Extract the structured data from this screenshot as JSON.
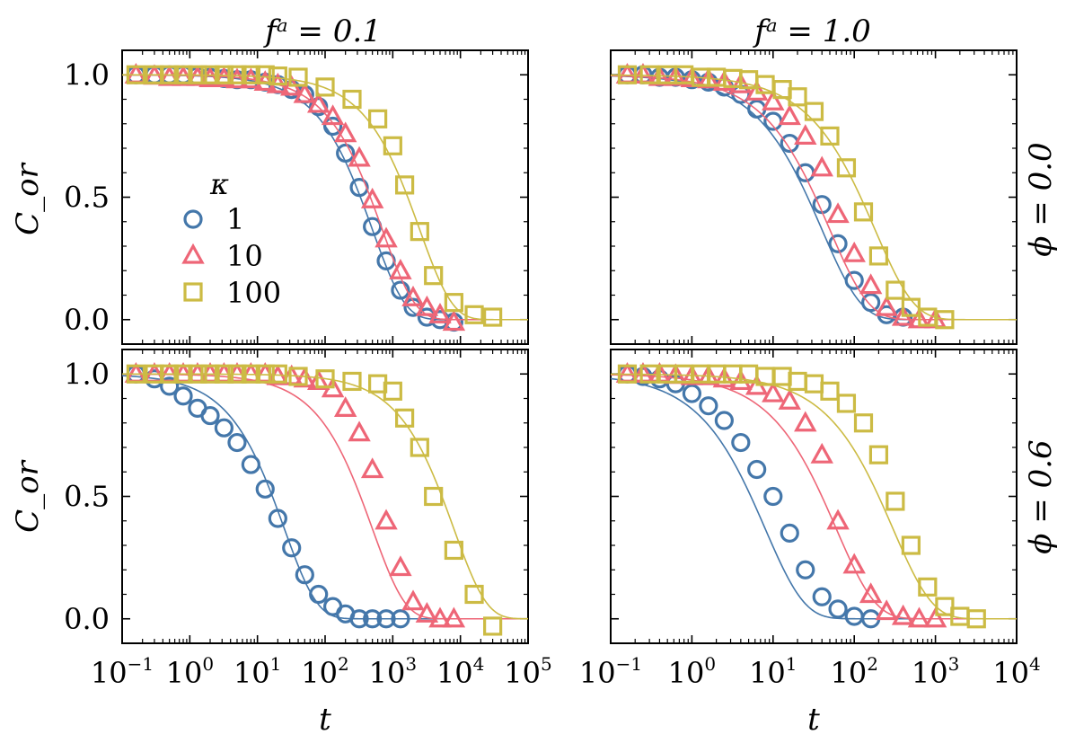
{
  "chart_data": {
    "type": "scatter",
    "ylabel": "C_or",
    "xlabel": "t",
    "ylim": [
      -0.1,
      1.1
    ],
    "yticks": [
      0.0,
      0.5,
      1.0
    ],
    "ytick_labels": [
      "0.0",
      "0.5",
      "1.0"
    ],
    "legend": {
      "title": "κ",
      "entries": [
        "1",
        "10",
        "100"
      ],
      "location": "center-left",
      "panel": "top-left"
    },
    "colors": {
      "k1": "#4477aa",
      "k10": "#ee6677",
      "k100": "#ccbb44"
    },
    "col_titles": [
      "fᵃ = 0.1",
      "fᵃ = 1.0"
    ],
    "row_titles": [
      "ϕ = 0.0",
      "ϕ = 0.6"
    ],
    "columns": [
      {
        "xlog_range": [
          -1,
          5
        ],
        "xtick_exps": [
          -1,
          0,
          1,
          2,
          3,
          4,
          5
        ]
      },
      {
        "xlog_range": [
          -1,
          4
        ],
        "xtick_exps": [
          -1,
          0,
          1,
          2,
          3,
          4
        ]
      }
    ],
    "panels": [
      {
        "col": 0,
        "row": 0,
        "series": [
          {
            "kappa": "1",
            "marker": "circle",
            "tau": 500,
            "beta": 0.9,
            "x": [
              0.16,
              0.3,
              0.5,
              0.8,
              1.3,
              2,
              3.2,
              5,
              8,
              13,
              20,
              32,
              50,
              80,
              130,
              200,
              320,
              500,
              800,
              1300,
              2000,
              3200,
              5000,
              8000
            ],
            "y": [
              1.0,
              1.0,
              1.0,
              1.0,
              0.995,
              0.99,
              0.985,
              0.98,
              0.98,
              0.97,
              0.96,
              0.94,
              0.92,
              0.87,
              0.79,
              0.68,
              0.54,
              0.38,
              0.24,
              0.12,
              0.05,
              0.01,
              0.0,
              -0.01
            ]
          },
          {
            "kappa": "10",
            "marker": "triangle",
            "tau": 700,
            "beta": 0.9,
            "x": [
              0.16,
              0.3,
              0.5,
              0.8,
              1.3,
              2,
              3.2,
              5,
              8,
              13,
              20,
              32,
              50,
              80,
              130,
              200,
              320,
              500,
              800,
              1300,
              2000,
              3200,
              5000,
              8000
            ],
            "y": [
              1.0,
              0.995,
              0.99,
              0.99,
              0.99,
              0.985,
              0.985,
              0.98,
              0.98,
              0.97,
              0.96,
              0.95,
              0.92,
              0.88,
              0.83,
              0.76,
              0.66,
              0.49,
              0.33,
              0.2,
              0.09,
              0.05,
              0.02,
              -0.01
            ]
          },
          {
            "kappa": "100",
            "marker": "square",
            "tau": 2500,
            "beta": 0.9,
            "x": [
              0.16,
              0.3,
              0.5,
              0.8,
              1.3,
              2,
              3.2,
              5,
              8,
              13,
              20,
              40,
              100,
              250,
              600,
              1000,
              1500,
              2500,
              4000,
              8000,
              16000,
              30000
            ],
            "y": [
              1.0,
              1.0,
              1.0,
              1.0,
              1.0,
              1.0,
              1.0,
              1.0,
              1.0,
              1.0,
              0.995,
              0.99,
              0.95,
              0.9,
              0.82,
              0.71,
              0.55,
              0.36,
              0.18,
              0.07,
              0.02,
              0.01
            ]
          }
        ]
      },
      {
        "col": 1,
        "row": 0,
        "series": [
          {
            "kappa": "1",
            "marker": "circle",
            "tau": 40,
            "beta": 0.9,
            "x": [
              0.16,
              0.25,
              0.4,
              0.63,
              1.0,
              1.6,
              2.5,
              4,
              6.3,
              10,
              16,
              25,
              40,
              63,
              100,
              160,
              250,
              400
            ],
            "y": [
              1.0,
              1.0,
              0.99,
              0.99,
              0.98,
              0.97,
              0.95,
              0.92,
              0.86,
              0.81,
              0.72,
              0.6,
              0.47,
              0.31,
              0.16,
              0.07,
              0.02,
              0.01
            ]
          },
          {
            "kappa": "10",
            "marker": "triangle",
            "tau": 50,
            "beta": 0.9,
            "x": [
              0.16,
              0.25,
              0.4,
              0.63,
              1.0,
              1.6,
              2.5,
              4,
              6.3,
              10,
              16,
              25,
              40,
              63,
              100,
              160,
              250,
              400,
              630,
              1000
            ],
            "y": [
              1.0,
              1.0,
              0.99,
              0.99,
              0.985,
              0.98,
              0.97,
              0.96,
              0.93,
              0.89,
              0.83,
              0.75,
              0.62,
              0.43,
              0.27,
              0.14,
              0.05,
              0.01,
              0.0,
              0.0
            ]
          },
          {
            "kappa": "100",
            "marker": "square",
            "tau": 180,
            "beta": 0.9,
            "x": [
              0.16,
              0.3,
              0.5,
              0.8,
              1.3,
              2,
              3.2,
              5,
              8,
              13,
              20,
              32,
              50,
              80,
              130,
              200,
              320,
              500,
              800,
              1300
            ],
            "y": [
              1.0,
              1.0,
              1.0,
              1.0,
              0.99,
              0.99,
              0.985,
              0.98,
              0.96,
              0.94,
              0.91,
              0.85,
              0.75,
              0.62,
              0.44,
              0.26,
              0.12,
              0.05,
              0.01,
              0.0
            ]
          }
        ]
      },
      {
        "col": 0,
        "row": 1,
        "series": [
          {
            "kappa": "1",
            "marker": "circle",
            "tau": 25,
            "beta": 0.9,
            "x": [
              0.16,
              0.3,
              0.5,
              0.8,
              1.3,
              2,
              3.2,
              5,
              8,
              13,
              20,
              32,
              50,
              80,
              130,
              200,
              320,
              500,
              800,
              1300
            ],
            "y": [
              1.0,
              0.98,
              0.95,
              0.91,
              0.86,
              0.83,
              0.78,
              0.72,
              0.63,
              0.53,
              0.41,
              0.29,
              0.18,
              0.1,
              0.05,
              0.02,
              0.0,
              0.0,
              0.0,
              0.0
            ]
          },
          {
            "kappa": "10",
            "marker": "triangle",
            "tau": 500,
            "beta": 0.9,
            "x": [
              0.16,
              0.3,
              0.5,
              0.8,
              1.3,
              2,
              3.2,
              5,
              8,
              13,
              20,
              32,
              50,
              80,
              130,
              200,
              320,
              500,
              800,
              1300,
              2000,
              3200,
              5000,
              8000
            ],
            "y": [
              1.0,
              1.0,
              1.0,
              1.0,
              1.0,
              1.0,
              1.0,
              1.0,
              1.0,
              1.0,
              0.99,
              0.99,
              0.98,
              0.97,
              0.94,
              0.86,
              0.76,
              0.61,
              0.4,
              0.21,
              0.07,
              0.02,
              0.0,
              0.0
            ]
          },
          {
            "kappa": "100",
            "marker": "square",
            "tau": 8000,
            "beta": 0.9,
            "x": [
              0.16,
              0.3,
              0.5,
              0.8,
              1.3,
              2,
              3.2,
              5,
              8,
              13,
              20,
              40,
              100,
              250,
              600,
              1000,
              1500,
              2500,
              4000,
              8000,
              16000,
              30000
            ],
            "y": [
              1.0,
              1.0,
              1.0,
              1.0,
              1.0,
              1.0,
              1.0,
              1.0,
              1.0,
              1.0,
              1.0,
              0.99,
              0.98,
              0.97,
              0.96,
              0.93,
              0.82,
              0.7,
              0.5,
              0.28,
              0.1,
              -0.03
            ]
          }
        ]
      },
      {
        "col": 1,
        "row": 1,
        "series": [
          {
            "kappa": "1",
            "marker": "circle",
            "tau": 8,
            "beta": 0.9,
            "x": [
              0.16,
              0.25,
              0.4,
              0.63,
              1.0,
              1.6,
              2.5,
              4,
              6.3,
              10,
              16,
              25,
              40,
              63,
              100,
              160
            ],
            "y": [
              1.0,
              0.99,
              0.98,
              0.96,
              0.92,
              0.87,
              0.81,
              0.72,
              0.61,
              0.5,
              0.35,
              0.2,
              0.09,
              0.04,
              0.01,
              0.0
            ]
          },
          {
            "kappa": "10",
            "marker": "triangle",
            "tau": 60,
            "beta": 0.9,
            "x": [
              0.16,
              0.25,
              0.4,
              0.63,
              1.0,
              1.6,
              2.5,
              4,
              6.3,
              10,
              16,
              25,
              40,
              63,
              100,
              160,
              250,
              400,
              630,
              1000
            ],
            "y": [
              1.0,
              1.0,
              1.0,
              0.995,
              0.99,
              0.99,
              0.98,
              0.97,
              0.95,
              0.92,
              0.89,
              0.8,
              0.67,
              0.4,
              0.22,
              0.1,
              0.03,
              0.01,
              0.0,
              0.0
            ]
          },
          {
            "kappa": "100",
            "marker": "square",
            "tau": 300,
            "beta": 0.9,
            "x": [
              0.16,
              0.3,
              0.5,
              0.8,
              1.3,
              2,
              3.2,
              5,
              8,
              13,
              20,
              32,
              50,
              80,
              130,
              200,
              320,
              500,
              800,
              1300,
              2000,
              3200
            ],
            "y": [
              1.0,
              1.0,
              1.0,
              1.0,
              1.0,
              1.0,
              1.0,
              1.0,
              0.99,
              0.99,
              0.97,
              0.96,
              0.93,
              0.88,
              0.8,
              0.67,
              0.48,
              0.3,
              0.13,
              0.05,
              0.01,
              0.0
            ]
          }
        ]
      }
    ]
  }
}
